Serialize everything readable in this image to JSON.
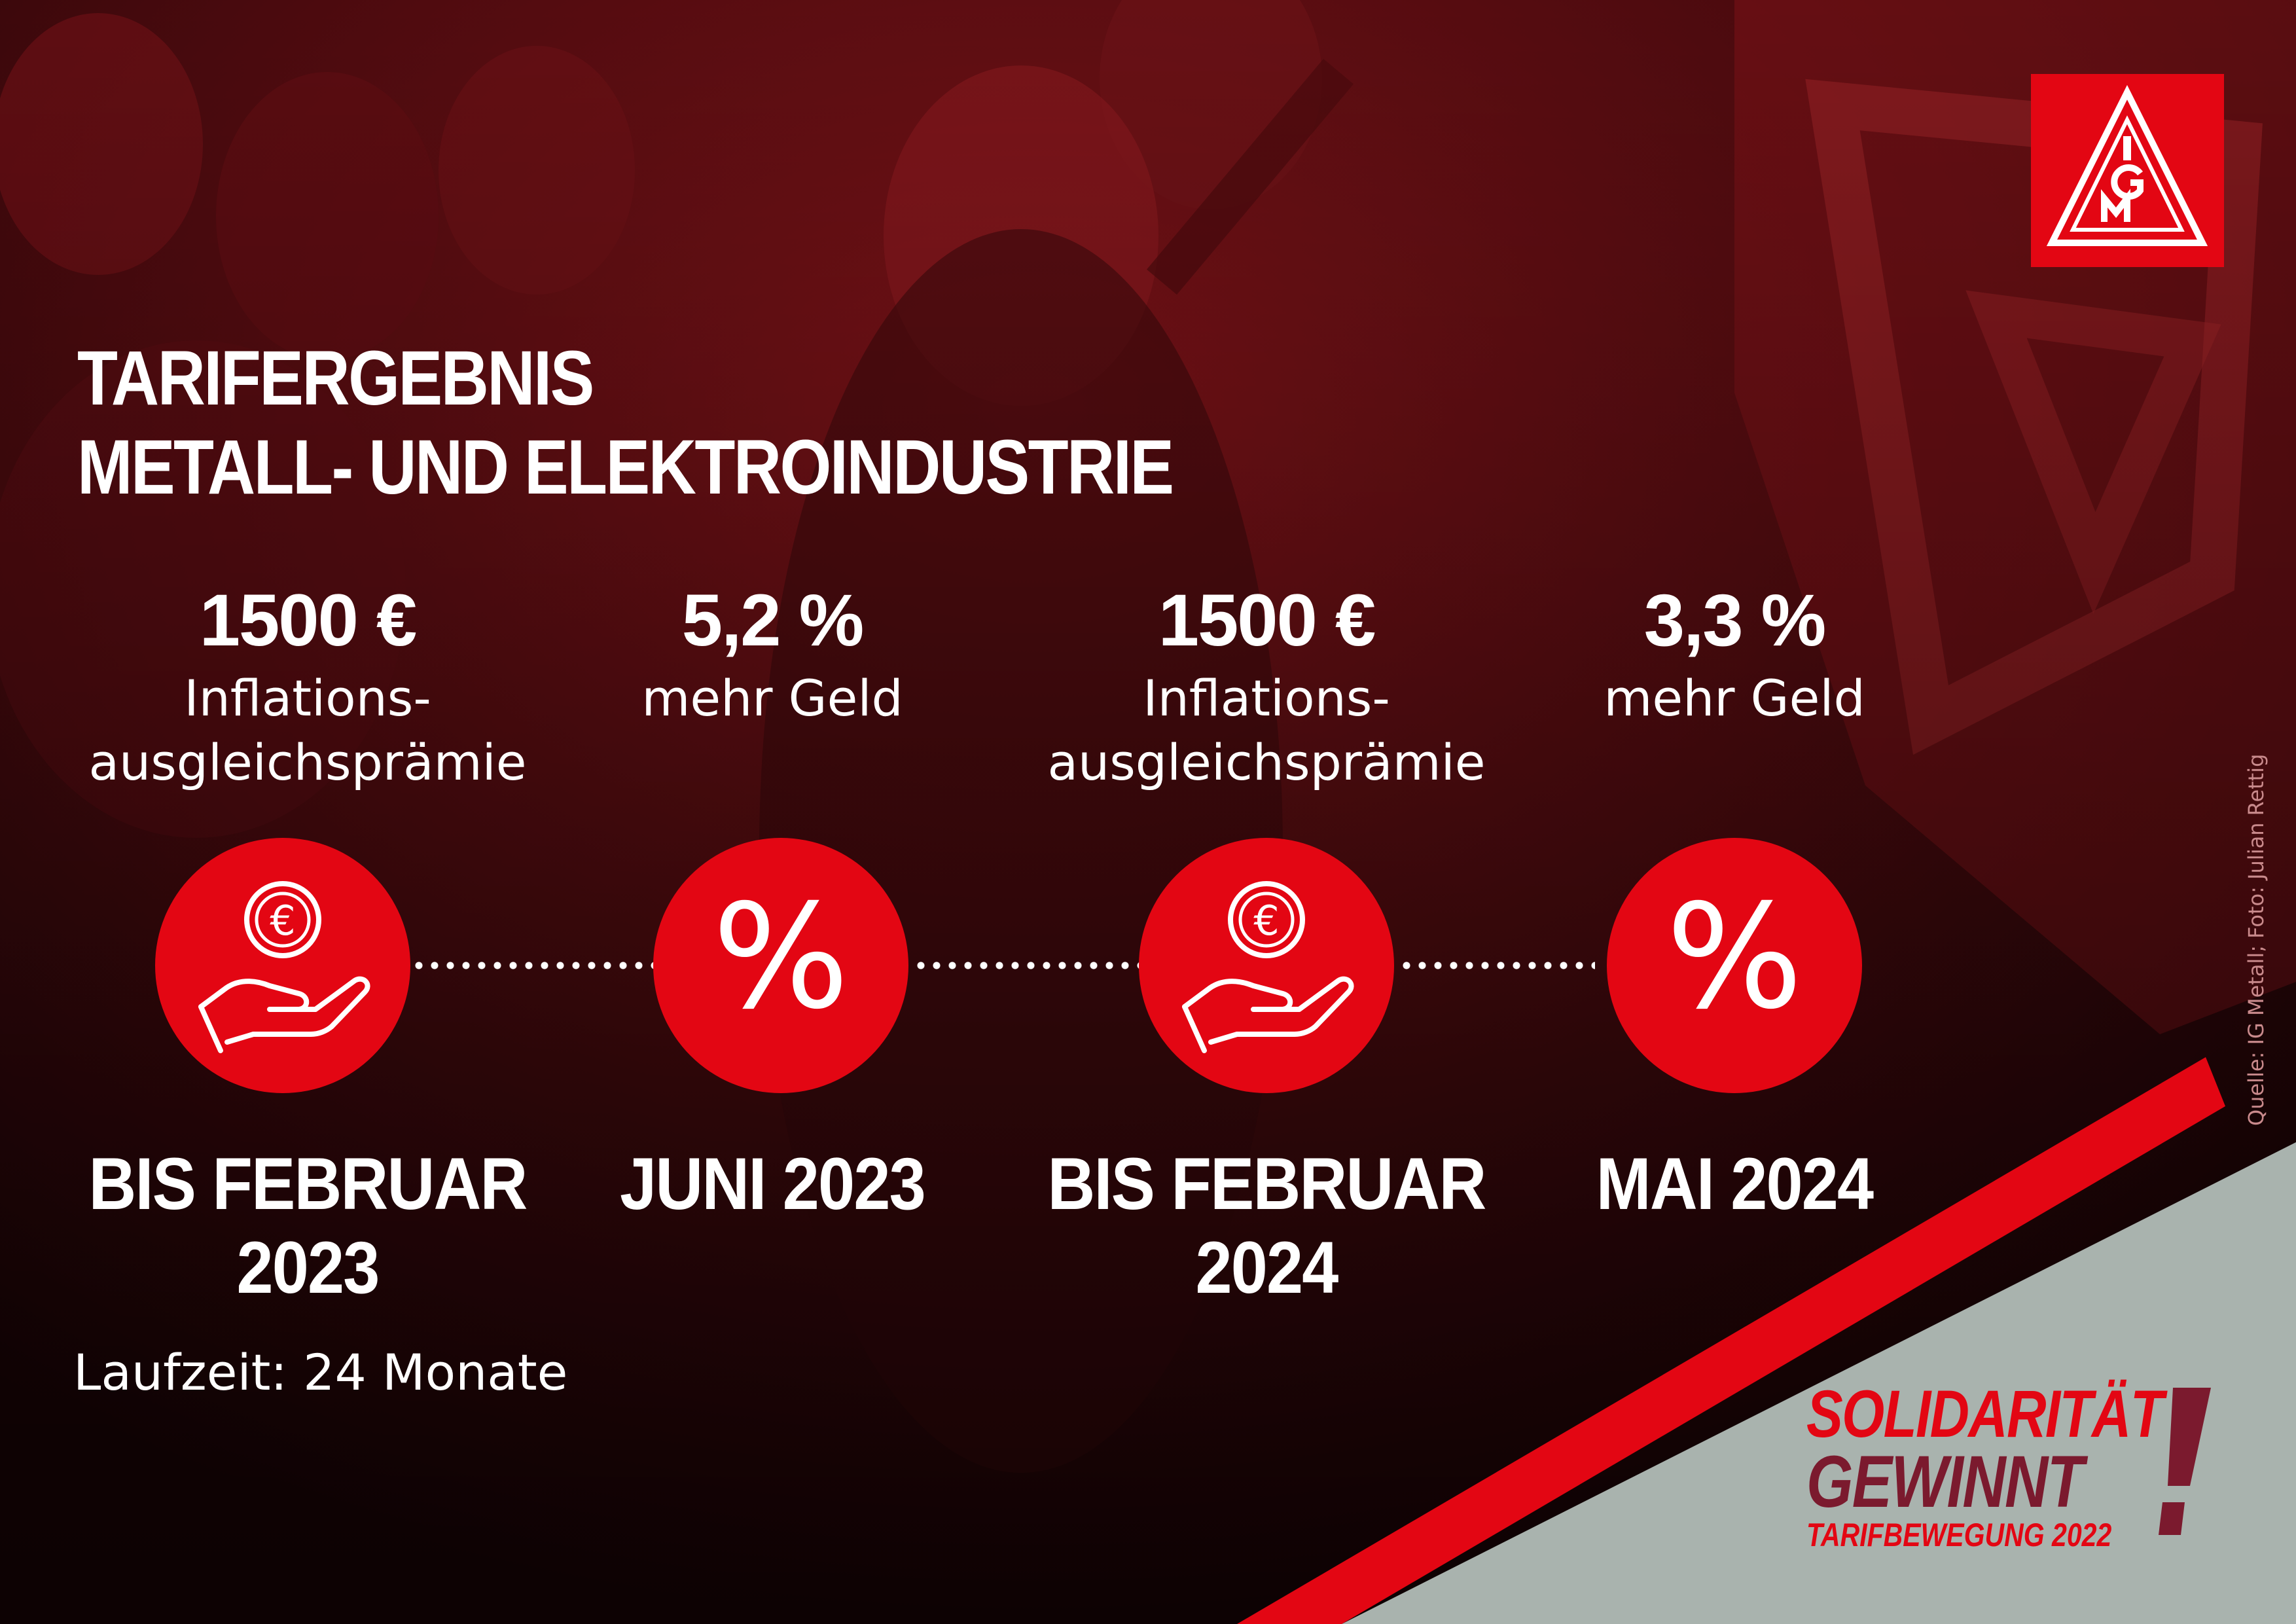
{
  "title_line1": "TARIFERGEBNIS",
  "title_line2": "METALL- UND ELEKTROINDUSTRIE",
  "timeline": [
    {
      "amount": "1500 €",
      "desc_line1": "Inflations-",
      "desc_line2": "ausgleichsprämie",
      "icon": "euro-coin-hand-icon",
      "date_line1": "BIS FEBRUAR",
      "date_line2": "2023"
    },
    {
      "amount": "5,2 %",
      "desc_line1": "mehr Geld",
      "desc_line2": "",
      "icon": "percent-icon",
      "icon_text": "%",
      "date_line1": "JUNI 2023",
      "date_line2": ""
    },
    {
      "amount": "1500 €",
      "desc_line1": "Inflations-",
      "desc_line2": "ausgleichsprämie",
      "icon": "euro-coin-hand-icon",
      "date_line1": "BIS FEBRUAR",
      "date_line2": "2024"
    },
    {
      "amount": "3,3 %",
      "desc_line1": "mehr Geld",
      "desc_line2": "",
      "icon": "percent-icon",
      "icon_text": "%",
      "date_line1": "MAI 2024",
      "date_line2": ""
    }
  ],
  "laufzeit": "Laufzeit: 24 Monate",
  "source": "Quelle: IG Metall; Foto: Julian Rettig",
  "logo": {
    "letters": "IGM",
    "icon": "ig-metall-logo-icon"
  },
  "slogan": {
    "line1": "SOLIDARITÄT",
    "line2": "GEWINNT",
    "line3": "TARIFBEWEGUNG 2022"
  },
  "colors": {
    "accent_red": "#e30613",
    "dark_red": "#7b1a2e",
    "background": "#2a0608",
    "grey": "#a9b3ae"
  }
}
